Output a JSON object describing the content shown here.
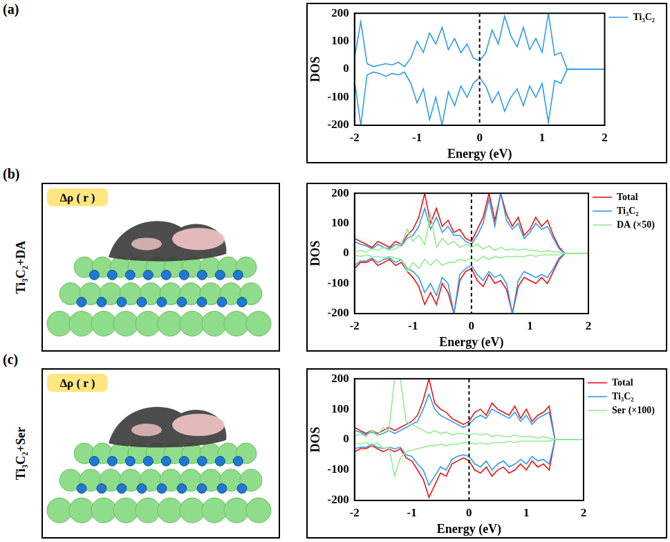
{
  "panels": [
    {
      "letter": "(a)"
    },
    {
      "letter": "(b)",
      "row_label": "Ti₃C₂+DA",
      "image_label": "Δρ ( r )"
    },
    {
      "letter": "(c)",
      "row_label": "Ti₃C₂+Ser",
      "image_label": "Δρ ( r )"
    }
  ],
  "chart_data": [
    {
      "type": "line",
      "x_label": "Energy (eV)",
      "y_label": "DOS",
      "x": [
        -2,
        -1.9,
        -1.8,
        -1.7,
        -1.6,
        -1.5,
        -1.4,
        -1.3,
        -1.2,
        -1.1,
        -1,
        -0.9,
        -0.8,
        -0.7,
        -0.6,
        -0.5,
        -0.4,
        -0.3,
        -0.2,
        -0.1,
        0,
        0.1,
        0.2,
        0.3,
        0.4,
        0.5,
        0.6,
        0.7,
        0.8,
        0.9,
        1,
        1.1,
        1.2,
        1.3,
        1.4,
        1.5,
        1.6,
        1.7,
        1.8,
        1.9,
        2
      ],
      "xlim": [
        -2,
        2
      ],
      "xticks": [
        -2,
        -1,
        0,
        1,
        2
      ],
      "ylim": [
        -200,
        200
      ],
      "yticks": [
        -200,
        -100,
        0,
        100,
        200
      ],
      "fermi_level": 0,
      "grid": false,
      "legend": "right",
      "series": [
        {
          "name": "Ti₃C₂",
          "color": "#2f9bef",
          "values": [
            40,
            170,
            20,
            10,
            15,
            20,
            15,
            25,
            10,
            40,
            100,
            60,
            130,
            90,
            150,
            70,
            110,
            60,
            90,
            40,
            30,
            60,
            140,
            90,
            190,
            120,
            80,
            150,
            70,
            110,
            60,
            200,
            50,
            60,
            0,
            0,
            0,
            0,
            0,
            0,
            0
          ],
          "values_down": [
            -40,
            -200,
            -20,
            -10,
            -15,
            -25,
            -15,
            -20,
            -10,
            -50,
            -120,
            -70,
            -180,
            -100,
            -200,
            -80,
            -130,
            -60,
            -100,
            -50,
            -30,
            -60,
            -120,
            -80,
            -150,
            -100,
            -70,
            -130,
            -60,
            -100,
            -50,
            -190,
            -40,
            -50,
            0,
            0,
            0,
            0,
            0,
            0,
            0
          ]
        }
      ]
    },
    {
      "type": "line",
      "x_label": "Energy (eV)",
      "y_label": "DOS",
      "x": [
        -2,
        -1.9,
        -1.8,
        -1.7,
        -1.6,
        -1.5,
        -1.4,
        -1.3,
        -1.2,
        -1.1,
        -1,
        -0.9,
        -0.8,
        -0.7,
        -0.6,
        -0.5,
        -0.4,
        -0.3,
        -0.2,
        -0.1,
        0,
        0.1,
        0.2,
        0.3,
        0.4,
        0.5,
        0.6,
        0.7,
        0.8,
        0.9,
        1,
        1.1,
        1.2,
        1.3,
        1.4,
        1.5,
        1.6,
        1.7,
        1.8,
        1.9,
        2
      ],
      "xlim": [
        -2,
        2
      ],
      "xticks": [
        -2,
        -1,
        0,
        1,
        2
      ],
      "ylim": [
        -200,
        200
      ],
      "yticks": [
        -200,
        -100,
        0,
        100,
        200
      ],
      "fermi_level": 0,
      "grid": false,
      "legend": "right",
      "series": [
        {
          "name": "Total",
          "color": "#ee1111",
          "values": [
            50,
            40,
            30,
            20,
            40,
            30,
            20,
            40,
            30,
            60,
            80,
            120,
            200,
            100,
            150,
            90,
            110,
            70,
            80,
            50,
            40,
            80,
            120,
            200,
            110,
            200,
            130,
            90,
            120,
            60,
            80,
            120,
            90,
            110,
            60,
            20,
            0,
            0,
            0,
            0,
            0
          ],
          "values_down": [
            -50,
            -30,
            -30,
            -20,
            -40,
            -30,
            -20,
            -40,
            -30,
            -60,
            -80,
            -110,
            -170,
            -130,
            -170,
            -100,
            -130,
            -200,
            -90,
            -60,
            -50,
            -90,
            -110,
            -70,
            -100,
            -90,
            -120,
            -200,
            -110,
            -80,
            -90,
            -100,
            -80,
            -100,
            -60,
            -20,
            0,
            0,
            0,
            0,
            0
          ]
        },
        {
          "name": "Ti₃C₂",
          "color": "#2f9bef",
          "values": [
            40,
            30,
            25,
            15,
            30,
            20,
            15,
            30,
            25,
            50,
            60,
            90,
            150,
            80,
            120,
            70,
            90,
            60,
            60,
            40,
            30,
            60,
            100,
            180,
            90,
            200,
            110,
            80,
            100,
            50,
            70,
            100,
            80,
            90,
            50,
            15,
            0,
            0,
            0,
            0,
            0
          ],
          "values_down": [
            -40,
            -25,
            -25,
            -15,
            -30,
            -20,
            -15,
            -30,
            -20,
            -50,
            -60,
            -80,
            -130,
            -100,
            -140,
            -80,
            -100,
            -200,
            -70,
            -50,
            -40,
            -70,
            -90,
            -60,
            -80,
            -70,
            -100,
            -200,
            -90,
            -60,
            -70,
            -80,
            -70,
            -80,
            -50,
            -15,
            0,
            0,
            0,
            0,
            0
          ]
        },
        {
          "name": "DA (×50)",
          "color": "#8fee8f",
          "values": [
            5,
            10,
            5,
            15,
            10,
            20,
            10,
            15,
            30,
            80,
            40,
            60,
            30,
            130,
            20,
            50,
            30,
            40,
            20,
            30,
            20,
            30,
            15,
            25,
            10,
            20,
            10,
            15,
            10,
            15,
            10,
            10,
            5,
            10,
            5,
            5,
            0,
            0,
            0,
            0,
            0
          ],
          "values_down": [
            -5,
            -10,
            -5,
            -10,
            -10,
            -15,
            -10,
            -15,
            -20,
            -60,
            -30,
            -50,
            -20,
            -40,
            -20,
            -40,
            -30,
            -30,
            -20,
            -25,
            -15,
            -25,
            -10,
            -20,
            -10,
            -15,
            -10,
            -10,
            -10,
            -10,
            -5,
            -10,
            -5,
            -5,
            -5,
            -5,
            0,
            0,
            0,
            0,
            0
          ]
        }
      ]
    },
    {
      "type": "line",
      "x_label": "Energy (eV)",
      "y_label": "DOS",
      "x": [
        -2,
        -1.9,
        -1.8,
        -1.7,
        -1.6,
        -1.5,
        -1.4,
        -1.3,
        -1.2,
        -1.1,
        -1,
        -0.9,
        -0.8,
        -0.7,
        -0.6,
        -0.5,
        -0.4,
        -0.3,
        -0.2,
        -0.1,
        0,
        0.1,
        0.2,
        0.3,
        0.4,
        0.5,
        0.6,
        0.7,
        0.8,
        0.9,
        1,
        1.1,
        1.2,
        1.3,
        1.4,
        1.5,
        1.6,
        1.7,
        1.8,
        1.9,
        2
      ],
      "xlim": [
        -2,
        2
      ],
      "xticks": [
        -2,
        -1,
        0,
        1,
        2
      ],
      "ylim": [
        -200,
        200
      ],
      "yticks": [
        -200,
        -100,
        0,
        100,
        200
      ],
      "fermi_level": 0,
      "grid": false,
      "legend": "right",
      "series": [
        {
          "name": "Total",
          "color": "#ee1111",
          "values": [
            40,
            30,
            20,
            30,
            20,
            30,
            40,
            30,
            40,
            50,
            60,
            80,
            130,
            200,
            120,
            100,
            90,
            70,
            60,
            50,
            60,
            90,
            100,
            80,
            120,
            100,
            90,
            80,
            110,
            70,
            100,
            60,
            80,
            90,
            110,
            0,
            0,
            0,
            0,
            0,
            0
          ],
          "values_down": [
            -40,
            -30,
            -30,
            -20,
            -30,
            -40,
            -30,
            -40,
            -30,
            -60,
            -70,
            -100,
            -130,
            -190,
            -150,
            -110,
            -120,
            -80,
            -70,
            -60,
            -70,
            -100,
            -110,
            -90,
            -120,
            -100,
            -90,
            -110,
            -100,
            -80,
            -100,
            -70,
            -90,
            -80,
            -100,
            0,
            0,
            0,
            0,
            0,
            0
          ]
        },
        {
          "name": "Ti₃C₂",
          "color": "#2f9bef",
          "values": [
            30,
            25,
            15,
            25,
            15,
            20,
            30,
            20,
            30,
            40,
            50,
            60,
            100,
            150,
            100,
            80,
            70,
            60,
            50,
            40,
            50,
            70,
            80,
            70,
            100,
            90,
            80,
            70,
            90,
            60,
            80,
            50,
            70,
            80,
            90,
            0,
            0,
            0,
            0,
            0,
            0
          ],
          "values_down": [
            -30,
            -25,
            -25,
            -15,
            -25,
            -30,
            -25,
            -30,
            -25,
            -50,
            -55,
            -80,
            -100,
            -150,
            -120,
            -90,
            -100,
            -65,
            -55,
            -50,
            -55,
            -80,
            -90,
            -70,
            -100,
            -80,
            -70,
            -90,
            -80,
            -65,
            -80,
            -55,
            -70,
            -65,
            -80,
            0,
            0,
            0,
            0,
            0,
            0
          ]
        },
        {
          "name": "Ser (×100)",
          "color": "#8fee8f",
          "values": [
            10,
            20,
            10,
            30,
            15,
            40,
            30,
            200,
            200,
            60,
            50,
            40,
            30,
            20,
            30,
            20,
            25,
            15,
            20,
            20,
            15,
            20,
            15,
            20,
            10,
            15,
            10,
            10,
            15,
            10,
            10,
            10,
            5,
            10,
            5,
            0,
            0,
            0,
            0,
            0,
            0
          ],
          "values_down": [
            -10,
            -15,
            -10,
            -20,
            -10,
            -30,
            -25,
            -120,
            -60,
            -40,
            -35,
            -30,
            -25,
            -20,
            -20,
            -15,
            -20,
            -15,
            -15,
            -10,
            -10,
            -15,
            -10,
            -15,
            -10,
            -10,
            -10,
            -5,
            -10,
            -5,
            -5,
            -5,
            -5,
            -5,
            -5,
            0,
            0,
            0,
            0,
            0,
            0
          ]
        }
      ]
    }
  ]
}
